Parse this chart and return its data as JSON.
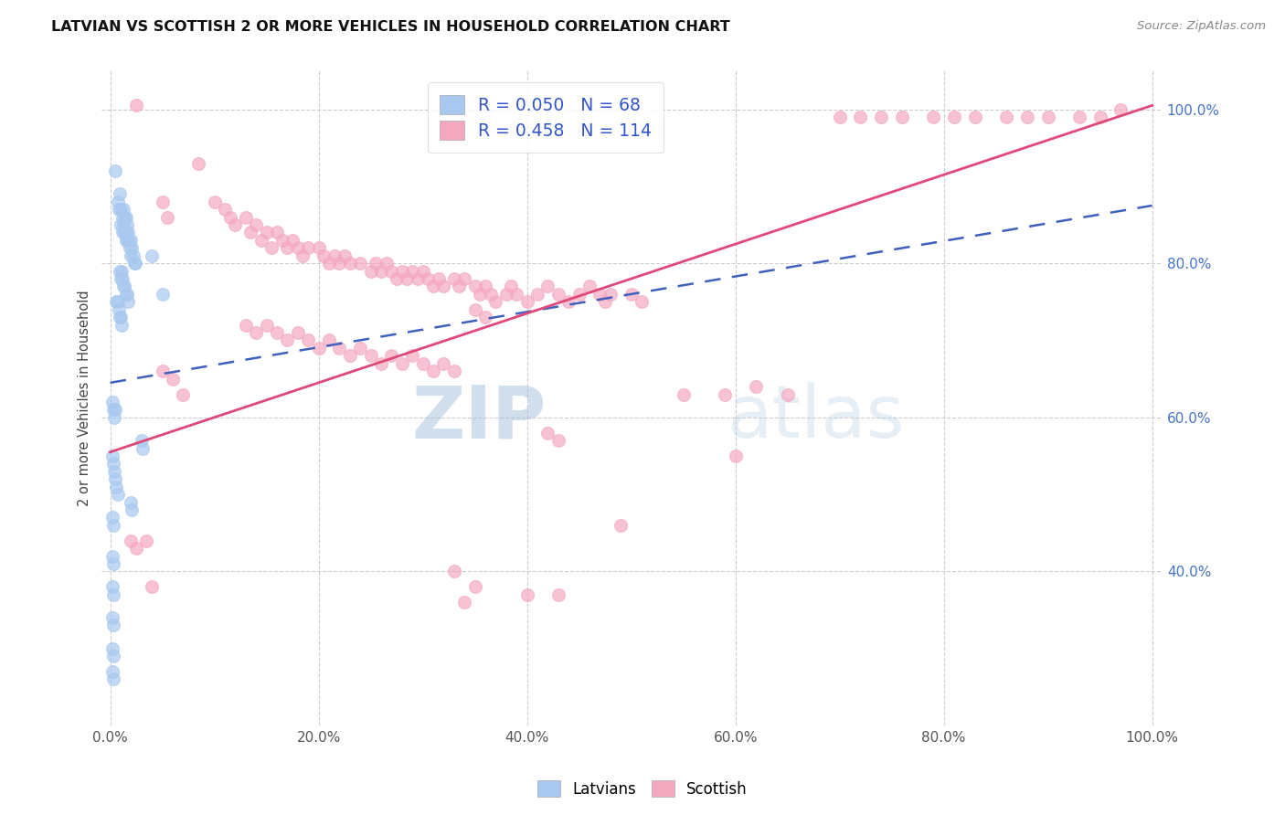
{
  "title": "LATVIAN VS SCOTTISH 2 OR MORE VEHICLES IN HOUSEHOLD CORRELATION CHART",
  "source": "Source: ZipAtlas.com",
  "ylabel": "2 or more Vehicles in Household",
  "latvian_R": 0.05,
  "latvian_N": 68,
  "scottish_R": 0.458,
  "scottish_N": 114,
  "latvian_color": "#A8C8F0",
  "scottish_color": "#F4A8C0",
  "latvian_line_color": "#4060C0",
  "scottish_line_color": "#E04878",
  "legend_labels": [
    "Latvians",
    "Scottish"
  ],
  "watermark_zip": "ZIP",
  "watermark_atlas": "atlas",
  "xlim": [
    0.0,
    1.0
  ],
  "ylim": [
    0.2,
    1.05
  ],
  "yticks": [
    0.4,
    0.6,
    0.8,
    1.0
  ],
  "ytick_labels": [
    "40.0%",
    "60.0%",
    "80.0%",
    "100.0%"
  ],
  "xticks": [
    0.0,
    0.2,
    0.4,
    0.6,
    0.8,
    1.0
  ],
  "xtick_labels": [
    "0.0%",
    "20.0%",
    "40.0%",
    "60.0%",
    "80.0%",
    "100.0%"
  ],
  "latvian_line_x": [
    0.0,
    1.0
  ],
  "latvian_line_y": [
    0.645,
    0.875
  ],
  "scottish_line_x": [
    0.0,
    1.0
  ],
  "scottish_line_y": [
    0.555,
    1.005
  ],
  "latvian_points": [
    [
      0.005,
      0.92
    ],
    [
      0.007,
      0.88
    ],
    [
      0.008,
      0.87
    ],
    [
      0.009,
      0.89
    ],
    [
      0.01,
      0.87
    ],
    [
      0.01,
      0.85
    ],
    [
      0.012,
      0.86
    ],
    [
      0.012,
      0.84
    ],
    [
      0.013,
      0.87
    ],
    [
      0.013,
      0.85
    ],
    [
      0.014,
      0.86
    ],
    [
      0.014,
      0.84
    ],
    [
      0.015,
      0.86
    ],
    [
      0.015,
      0.84
    ],
    [
      0.015,
      0.83
    ],
    [
      0.016,
      0.85
    ],
    [
      0.016,
      0.83
    ],
    [
      0.017,
      0.84
    ],
    [
      0.018,
      0.83
    ],
    [
      0.019,
      0.82
    ],
    [
      0.02,
      0.83
    ],
    [
      0.02,
      0.81
    ],
    [
      0.021,
      0.82
    ],
    [
      0.022,
      0.81
    ],
    [
      0.023,
      0.8
    ],
    [
      0.024,
      0.8
    ],
    [
      0.009,
      0.79
    ],
    [
      0.01,
      0.78
    ],
    [
      0.011,
      0.79
    ],
    [
      0.012,
      0.78
    ],
    [
      0.013,
      0.77
    ],
    [
      0.014,
      0.77
    ],
    [
      0.015,
      0.76
    ],
    [
      0.016,
      0.76
    ],
    [
      0.017,
      0.75
    ],
    [
      0.006,
      0.75
    ],
    [
      0.007,
      0.75
    ],
    [
      0.008,
      0.74
    ],
    [
      0.009,
      0.73
    ],
    [
      0.01,
      0.73
    ],
    [
      0.011,
      0.72
    ],
    [
      0.04,
      0.81
    ],
    [
      0.002,
      0.62
    ],
    [
      0.003,
      0.61
    ],
    [
      0.004,
      0.6
    ],
    [
      0.005,
      0.61
    ],
    [
      0.002,
      0.55
    ],
    [
      0.003,
      0.54
    ],
    [
      0.004,
      0.53
    ],
    [
      0.005,
      0.52
    ],
    [
      0.006,
      0.51
    ],
    [
      0.007,
      0.5
    ],
    [
      0.03,
      0.57
    ],
    [
      0.031,
      0.56
    ],
    [
      0.002,
      0.47
    ],
    [
      0.003,
      0.46
    ],
    [
      0.002,
      0.42
    ],
    [
      0.003,
      0.41
    ],
    [
      0.002,
      0.38
    ],
    [
      0.003,
      0.37
    ],
    [
      0.002,
      0.34
    ],
    [
      0.003,
      0.33
    ],
    [
      0.002,
      0.3
    ],
    [
      0.003,
      0.29
    ],
    [
      0.002,
      0.27
    ],
    [
      0.003,
      0.26
    ],
    [
      0.02,
      0.49
    ],
    [
      0.021,
      0.48
    ],
    [
      0.05,
      0.76
    ]
  ],
  "scottish_points": [
    [
      0.025,
      1.005
    ],
    [
      0.05,
      0.88
    ],
    [
      0.055,
      0.86
    ],
    [
      0.085,
      0.93
    ],
    [
      0.1,
      0.88
    ],
    [
      0.11,
      0.87
    ],
    [
      0.115,
      0.86
    ],
    [
      0.12,
      0.85
    ],
    [
      0.13,
      0.86
    ],
    [
      0.135,
      0.84
    ],
    [
      0.14,
      0.85
    ],
    [
      0.145,
      0.83
    ],
    [
      0.15,
      0.84
    ],
    [
      0.155,
      0.82
    ],
    [
      0.16,
      0.84
    ],
    [
      0.165,
      0.83
    ],
    [
      0.17,
      0.82
    ],
    [
      0.175,
      0.83
    ],
    [
      0.18,
      0.82
    ],
    [
      0.185,
      0.81
    ],
    [
      0.19,
      0.82
    ],
    [
      0.2,
      0.82
    ],
    [
      0.205,
      0.81
    ],
    [
      0.21,
      0.8
    ],
    [
      0.215,
      0.81
    ],
    [
      0.22,
      0.8
    ],
    [
      0.225,
      0.81
    ],
    [
      0.23,
      0.8
    ],
    [
      0.24,
      0.8
    ],
    [
      0.25,
      0.79
    ],
    [
      0.255,
      0.8
    ],
    [
      0.26,
      0.79
    ],
    [
      0.265,
      0.8
    ],
    [
      0.27,
      0.79
    ],
    [
      0.275,
      0.78
    ],
    [
      0.28,
      0.79
    ],
    [
      0.285,
      0.78
    ],
    [
      0.29,
      0.79
    ],
    [
      0.295,
      0.78
    ],
    [
      0.3,
      0.79
    ],
    [
      0.305,
      0.78
    ],
    [
      0.31,
      0.77
    ],
    [
      0.315,
      0.78
    ],
    [
      0.32,
      0.77
    ],
    [
      0.33,
      0.78
    ],
    [
      0.335,
      0.77
    ],
    [
      0.34,
      0.78
    ],
    [
      0.35,
      0.77
    ],
    [
      0.355,
      0.76
    ],
    [
      0.36,
      0.77
    ],
    [
      0.365,
      0.76
    ],
    [
      0.37,
      0.75
    ],
    [
      0.38,
      0.76
    ],
    [
      0.385,
      0.77
    ],
    [
      0.39,
      0.76
    ],
    [
      0.4,
      0.75
    ],
    [
      0.41,
      0.76
    ],
    [
      0.42,
      0.77
    ],
    [
      0.43,
      0.76
    ],
    [
      0.44,
      0.75
    ],
    [
      0.45,
      0.76
    ],
    [
      0.46,
      0.77
    ],
    [
      0.47,
      0.76
    ],
    [
      0.475,
      0.75
    ],
    [
      0.48,
      0.76
    ],
    [
      0.5,
      0.76
    ],
    [
      0.51,
      0.75
    ],
    [
      0.35,
      0.74
    ],
    [
      0.36,
      0.73
    ],
    [
      0.13,
      0.72
    ],
    [
      0.14,
      0.71
    ],
    [
      0.15,
      0.72
    ],
    [
      0.16,
      0.71
    ],
    [
      0.17,
      0.7
    ],
    [
      0.18,
      0.71
    ],
    [
      0.19,
      0.7
    ],
    [
      0.2,
      0.69
    ],
    [
      0.21,
      0.7
    ],
    [
      0.22,
      0.69
    ],
    [
      0.23,
      0.68
    ],
    [
      0.24,
      0.69
    ],
    [
      0.25,
      0.68
    ],
    [
      0.26,
      0.67
    ],
    [
      0.27,
      0.68
    ],
    [
      0.28,
      0.67
    ],
    [
      0.29,
      0.68
    ],
    [
      0.3,
      0.67
    ],
    [
      0.31,
      0.66
    ],
    [
      0.32,
      0.67
    ],
    [
      0.33,
      0.66
    ],
    [
      0.05,
      0.66
    ],
    [
      0.06,
      0.65
    ],
    [
      0.07,
      0.63
    ],
    [
      0.02,
      0.44
    ],
    [
      0.025,
      0.43
    ],
    [
      0.035,
      0.44
    ],
    [
      0.04,
      0.38
    ],
    [
      0.42,
      0.58
    ],
    [
      0.43,
      0.57
    ],
    [
      0.33,
      0.4
    ],
    [
      0.34,
      0.36
    ],
    [
      0.35,
      0.38
    ],
    [
      0.4,
      0.37
    ],
    [
      0.43,
      0.37
    ],
    [
      0.49,
      0.46
    ],
    [
      0.55,
      0.63
    ],
    [
      0.59,
      0.63
    ],
    [
      0.6,
      0.55
    ],
    [
      0.62,
      0.64
    ],
    [
      0.65,
      0.63
    ],
    [
      0.7,
      0.99
    ],
    [
      0.72,
      0.99
    ],
    [
      0.74,
      0.99
    ],
    [
      0.76,
      0.99
    ],
    [
      0.79,
      0.99
    ],
    [
      0.81,
      0.99
    ],
    [
      0.83,
      0.99
    ],
    [
      0.86,
      0.99
    ],
    [
      0.88,
      0.99
    ],
    [
      0.9,
      0.99
    ],
    [
      0.93,
      0.99
    ],
    [
      0.95,
      0.99
    ],
    [
      0.97,
      1.0
    ]
  ]
}
